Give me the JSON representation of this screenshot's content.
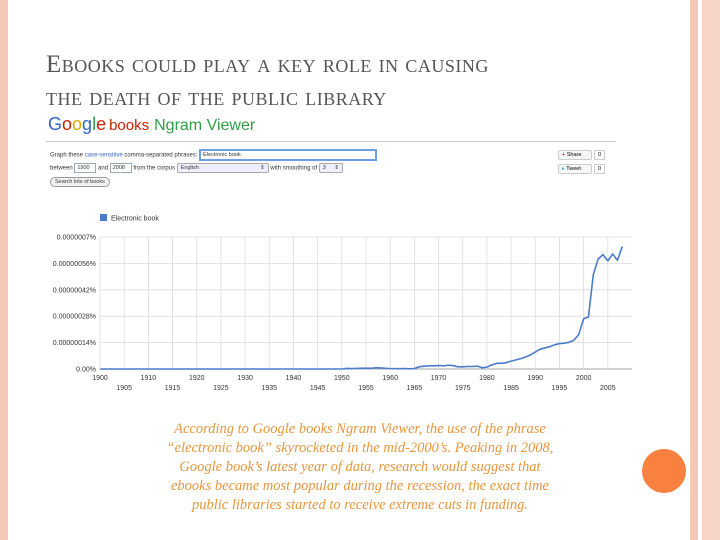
{
  "slide": {
    "title_line1": "Ebooks could play a key role in causing",
    "title_line2": "the death of the public library",
    "caption_lines": [
      "According to Google books Ngram Viewer, the use of the phrase",
      "“electronic book” skyrocketed in the mid-2000’s. Peaking in 2008,",
      "Google book’s latest year of data, research would suggest that",
      "ebooks became most popular during the recession, the exact time",
      "public libraries started to receive extreme cuts in funding."
    ]
  },
  "ngram": {
    "logo_books": "books",
    "logo_viewer": "Ngram Viewer",
    "form": {
      "graph_label_a": "Graph these",
      "graph_label_link": "case-sensitive",
      "graph_label_b": "comma-separated phrases:",
      "phrase_value": "Electronic book",
      "between_label": "between",
      "start_year": "1900",
      "and_label": "and",
      "end_year": "2008",
      "corpus_label": "from the corpus",
      "corpus_value": "English",
      "smoothing_label": "with smoothing of",
      "smoothing_value": "3",
      "search_button": "Search lots of books"
    },
    "social": {
      "share_label": "Share",
      "share_count": "0",
      "tweet_label": "Tweet",
      "tweet_count": "0"
    }
  },
  "chart_data": {
    "type": "line",
    "series": [
      {
        "name": "Electronic book",
        "x": [
          1900,
          1950,
          1951,
          1952,
          1953,
          1954,
          1955,
          1956,
          1957,
          1958,
          1959,
          1960,
          1961,
          1962,
          1963,
          1964,
          1965,
          1966,
          1967,
          1968,
          1969,
          1970,
          1971,
          1972,
          1973,
          1974,
          1975,
          1976,
          1977,
          1978,
          1979,
          1980,
          1981,
          1982,
          1983,
          1984,
          1985,
          1986,
          1987,
          1988,
          1989,
          1990,
          1991,
          1992,
          1993,
          1994,
          1995,
          1996,
          1997,
          1998,
          1999,
          2000,
          2001,
          2002,
          2003,
          2004,
          2005,
          2006,
          2007,
          2008
        ],
        "y": [
          0,
          0,
          1e-08,
          8e-09,
          1e-08,
          1.2e-08,
          1.4e-08,
          1.2e-08,
          2e-08,
          1.8e-08,
          1.2e-08,
          8e-09,
          6e-09,
          6e-09,
          8e-09,
          3e-09,
          8e-09,
          3.5e-08,
          4.5e-08,
          5e-08,
          5e-08,
          5.5e-08,
          5e-08,
          6e-08,
          5.5e-08,
          3.5e-08,
          3.5e-08,
          4e-08,
          4e-08,
          4.5e-08,
          2e-08,
          3e-08,
          6.5e-08,
          9e-08,
          9e-08,
          1e-07,
          1.25e-07,
          1.45e-07,
          1.65e-07,
          1.9e-07,
          2.25e-07,
          2.7e-07,
          3.15e-07,
          3.35e-07,
          3.55e-07,
          3.85e-07,
          4.05e-07,
          4.1e-07,
          4.25e-07,
          4.6e-07,
          5.5e-07,
          8e-07,
          8.3e-07,
          1.5e-06,
          1.75e-06,
          1.82e-06,
          1.72e-06,
          1.83e-06,
          1.73e-06,
          1.95e-06
        ]
      }
    ],
    "legend_position": "top-left",
    "xlim": [
      1900,
      2010
    ],
    "ylim": [
      0,
      2.1e-06
    ],
    "x_ticks_upper": [
      "1900",
      "1910",
      "1920",
      "1930",
      "1940",
      "1950",
      "1960",
      "1970",
      "1980",
      "1990",
      "2000"
    ],
    "x_ticks_lower": [
      "1905",
      "1915",
      "1925",
      "1935",
      "1945",
      "1955",
      "1965",
      "1975",
      "1985",
      "1995",
      "2005"
    ],
    "y_ticks": [
      "0.00%",
      "0.00000014%",
      "0.00000028%",
      "0.00000042%",
      "0.00000056%",
      "0.0000007%"
    ],
    "grid": true,
    "line_color": "#4a7cc9"
  }
}
